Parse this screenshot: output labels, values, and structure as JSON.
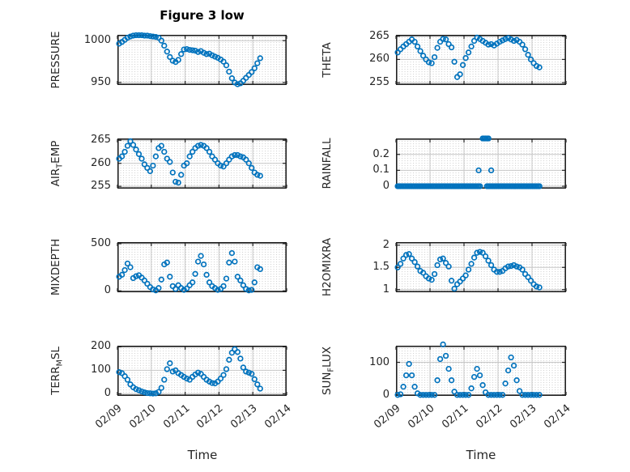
{
  "figure": {
    "title": "Figure 3 low",
    "xlabel": "Time",
    "xlim": [
      0,
      5
    ],
    "xticks": [
      0,
      1,
      2,
      3,
      4,
      5
    ],
    "xtick_labels": [
      "02/09",
      "02/10",
      "02/11",
      "02/12",
      "02/13",
      "02/14"
    ],
    "colors": {
      "marker": "#0072BD",
      "axis_box": "#212121",
      "major_grid": "#c7c7c7",
      "minor_grid_dot": "#d4d4d4",
      "tick_mark": "#262626",
      "text": "#262626"
    }
  },
  "shared_x": [
    0.05,
    0.133,
    0.217,
    0.3,
    0.383,
    0.467,
    0.55,
    0.633,
    0.717,
    0.8,
    0.883,
    0.967,
    1.05,
    1.133,
    1.217,
    1.3,
    1.383,
    1.467,
    1.55,
    1.633,
    1.717,
    1.8,
    1.883,
    1.967,
    2.05,
    2.133,
    2.217,
    2.3,
    2.383,
    2.467,
    2.55,
    2.633,
    2.717,
    2.8,
    2.883,
    2.967,
    3.05,
    3.133,
    3.217,
    3.3,
    3.383,
    3.467,
    3.55,
    3.633,
    3.717,
    3.8,
    3.883,
    3.967,
    4.05,
    4.133,
    4.217
  ],
  "chart_data": [
    {
      "type": "scatter",
      "id": "pressure",
      "ylabel": {
        "pre": "PRESSURE",
        "sub": "",
        "post": ""
      },
      "ylim": [
        947,
        1007
      ],
      "yticks": [
        950,
        1000
      ],
      "ytick_labels": [
        "950",
        "1000"
      ],
      "y": [
        996.5,
        998.5,
        1001,
        1003.5,
        1005,
        1006,
        1006.5,
        1006.5,
        1006.5,
        1006,
        1006,
        1005.5,
        1005,
        1004.5,
        1003.5,
        1000,
        994,
        987,
        980.5,
        976,
        974.5,
        977,
        984,
        989.5,
        990,
        989,
        988.5,
        988,
        986.5,
        987.5,
        985.5,
        984,
        984.5,
        982.5,
        981,
        979.5,
        977.5,
        975,
        970.5,
        963,
        955,
        950,
        948,
        949,
        952,
        955.5,
        959,
        962.5,
        967,
        973,
        979
      ]
    },
    {
      "type": "scatter",
      "id": "theta",
      "ylabel": {
        "pre": "THETA",
        "sub": "",
        "post": ""
      },
      "ylim": [
        254.5,
        265.3
      ],
      "yticks": [
        255,
        260,
        265
      ],
      "ytick_labels": [
        "255",
        "260",
        "265"
      ],
      "y": [
        261.5,
        262.2,
        262.8,
        263.3,
        263.8,
        264.3,
        263.8,
        262.8,
        261.8,
        260.8,
        260.0,
        259.4,
        259.2,
        260.5,
        262.5,
        263.8,
        264.4,
        264.3,
        263.3,
        262.6,
        259.5,
        256.2,
        256.8,
        258.8,
        260.3,
        261.5,
        262.8,
        264.0,
        264.7,
        264.4,
        264.0,
        263.6,
        263.2,
        263.3,
        263.0,
        263.4,
        263.8,
        264.1,
        264.4,
        264.6,
        264.3,
        264.0,
        264.2,
        263.8,
        263.2,
        262.2,
        261.0,
        260.0,
        259.2,
        258.6,
        258.3
      ]
    },
    {
      "type": "scatter",
      "id": "air-temp",
      "ylabel": {
        "pre": "AIR",
        "sub": "T",
        "post": "EMP"
      },
      "ylim": [
        254.5,
        265.4
      ],
      "yticks": [
        255,
        260,
        265
      ],
      "ytick_labels": [
        "255",
        "260",
        "265"
      ],
      "y": [
        261.0,
        261.5,
        262.5,
        263.8,
        264.8,
        264.0,
        263.0,
        262.0,
        261.0,
        259.8,
        259.0,
        258.3,
        259.5,
        261.5,
        263.3,
        263.8,
        262.5,
        261.0,
        260.3,
        258.0,
        256.0,
        255.8,
        257.5,
        259.5,
        260.0,
        261.5,
        262.5,
        263.3,
        263.8,
        264.0,
        263.8,
        263.3,
        262.5,
        261.5,
        260.8,
        260.0,
        259.5,
        259.3,
        260.0,
        260.8,
        261.5,
        261.8,
        261.8,
        261.5,
        261.3,
        260.8,
        260.0,
        259.0,
        258.0,
        257.5,
        257.3
      ]
    },
    {
      "type": "scatter",
      "id": "rainfall",
      "ylabel": {
        "pre": "RAINFALL",
        "sub": "",
        "post": ""
      },
      "ylim": [
        -0.015,
        0.3
      ],
      "yticks": [
        0,
        0.1,
        0.2
      ],
      "ytick_labels": [
        "0",
        "0.1",
        "0.2"
      ],
      "x": [
        0.05,
        0.092,
        0.133,
        0.175,
        0.217,
        0.259,
        0.3,
        0.342,
        0.384,
        0.425,
        0.467,
        0.509,
        0.55,
        0.592,
        0.634,
        0.676,
        0.717,
        0.759,
        0.801,
        0.842,
        0.884,
        0.926,
        0.967,
        1.009,
        1.051,
        1.093,
        1.134,
        1.176,
        1.218,
        1.259,
        1.301,
        1.343,
        1.384,
        1.426,
        1.468,
        1.51,
        1.551,
        1.593,
        1.635,
        1.676,
        1.718,
        1.76,
        1.801,
        1.843,
        1.885,
        1.927,
        1.968,
        2.01,
        2.052,
        2.093,
        2.135,
        2.177,
        2.218,
        2.26,
        2.302,
        2.344,
        2.385,
        2.427,
        2.469,
        2.677,
        2.719,
        2.76,
        2.802,
        2.844,
        2.885,
        2.927,
        2.969,
        3.01,
        3.052,
        3.094,
        3.135,
        3.177,
        3.219,
        3.261,
        3.302,
        3.344,
        3.386,
        3.427,
        3.469,
        3.511,
        3.552,
        3.594,
        3.636,
        3.678,
        3.719,
        3.761,
        3.803,
        3.844,
        3.886,
        3.928,
        3.969,
        4.011,
        4.053,
        4.094,
        4.136,
        4.178,
        4.219,
        2.43,
        2.8,
        2.55,
        2.592,
        2.634,
        2.676,
        2.718
      ],
      "y": [
        0,
        0,
        0,
        0,
        0,
        0,
        0,
        0,
        0,
        0,
        0,
        0,
        0,
        0,
        0,
        0,
        0,
        0,
        0,
        0,
        0,
        0,
        0,
        0,
        0,
        0,
        0,
        0,
        0,
        0,
        0,
        0,
        0,
        0,
        0,
        0,
        0,
        0,
        0,
        0,
        0,
        0,
        0,
        0,
        0,
        0,
        0,
        0,
        0,
        0,
        0,
        0,
        0,
        0,
        0,
        0,
        0,
        0,
        0,
        0,
        0,
        0,
        0,
        0,
        0,
        0,
        0,
        0,
        0,
        0,
        0,
        0,
        0,
        0,
        0,
        0,
        0,
        0,
        0,
        0,
        0,
        0,
        0,
        0,
        0,
        0,
        0,
        0,
        0,
        0,
        0,
        0,
        0,
        0,
        0,
        0,
        0,
        0.1,
        0.1,
        0.3,
        0.3,
        0.3,
        0.3,
        0.3
      ]
    },
    {
      "type": "scatter",
      "id": "mixdepth",
      "ylabel": {
        "pre": "MIXDEPTH",
        "sub": "",
        "post": ""
      },
      "ylim": [
        -15,
        517
      ],
      "yticks": [
        0,
        500
      ],
      "ytick_labels": [
        "0",
        "500"
      ],
      "y": [
        150,
        170,
        220,
        290,
        250,
        135,
        155,
        165,
        140,
        110,
        75,
        40,
        15,
        5,
        30,
        120,
        280,
        300,
        150,
        50,
        20,
        60,
        30,
        10,
        25,
        60,
        90,
        180,
        310,
        370,
        280,
        170,
        90,
        50,
        30,
        10,
        20,
        50,
        130,
        300,
        400,
        310,
        150,
        110,
        60,
        20,
        5,
        10,
        90,
        250,
        230
      ]
    },
    {
      "type": "scatter",
      "id": "h2omixra",
      "ylabel": {
        "pre": "H2OMIXRA",
        "sub": "",
        "post": ""
      },
      "ylim": [
        0.94,
        2.07
      ],
      "yticks": [
        1,
        1.5,
        2
      ],
      "ytick_labels": [
        "1",
        "1.5",
        "2"
      ],
      "y": [
        1.5,
        1.58,
        1.7,
        1.78,
        1.8,
        1.7,
        1.62,
        1.52,
        1.42,
        1.38,
        1.3,
        1.25,
        1.22,
        1.35,
        1.55,
        1.68,
        1.7,
        1.6,
        1.52,
        1.2,
        1.02,
        1.12,
        1.18,
        1.25,
        1.32,
        1.45,
        1.58,
        1.72,
        1.83,
        1.85,
        1.83,
        1.75,
        1.65,
        1.55,
        1.45,
        1.4,
        1.4,
        1.42,
        1.48,
        1.52,
        1.53,
        1.55,
        1.52,
        1.5,
        1.45,
        1.35,
        1.28,
        1.2,
        1.12,
        1.07,
        1.05
      ]
    },
    {
      "type": "scatter",
      "id": "terr-msl",
      "ylabel": {
        "pre": "TERR",
        "sub": "M",
        "post": "SL"
      },
      "ylim": [
        -9,
        205
      ],
      "yticks": [
        0,
        100,
        200
      ],
      "ytick_labels": [
        "0",
        "100",
        "200"
      ],
      "y": [
        92,
        88,
        75,
        60,
        40,
        28,
        20,
        15,
        10,
        6,
        3,
        2,
        1,
        2,
        8,
        25,
        60,
        105,
        130,
        95,
        100,
        88,
        80,
        72,
        65,
        60,
        72,
        82,
        90,
        85,
        72,
        60,
        52,
        46,
        44,
        52,
        65,
        80,
        105,
        145,
        175,
        190,
        178,
        150,
        112,
        95,
        90,
        85,
        62,
        40,
        22
      ]
    },
    {
      "type": "scatter",
      "id": "sun-flux",
      "ylabel": {
        "pre": "SUN",
        "sub": "F",
        "post": "LUX"
      },
      "ylim": [
        -3,
        151
      ],
      "yticks": [
        0,
        100
      ],
      "ytick_labels": [
        "0",
        "100"
      ],
      "y": [
        0,
        2,
        25,
        60,
        95,
        60,
        25,
        5,
        0,
        0,
        0,
        0,
        0,
        0,
        45,
        110,
        155,
        120,
        80,
        45,
        10,
        0,
        0,
        0,
        0,
        0,
        20,
        55,
        80,
        60,
        30,
        8,
        0,
        0,
        0,
        0,
        0,
        0,
        35,
        75,
        115,
        90,
        45,
        12,
        0,
        0,
        0,
        0,
        0,
        0,
        0
      ]
    }
  ]
}
